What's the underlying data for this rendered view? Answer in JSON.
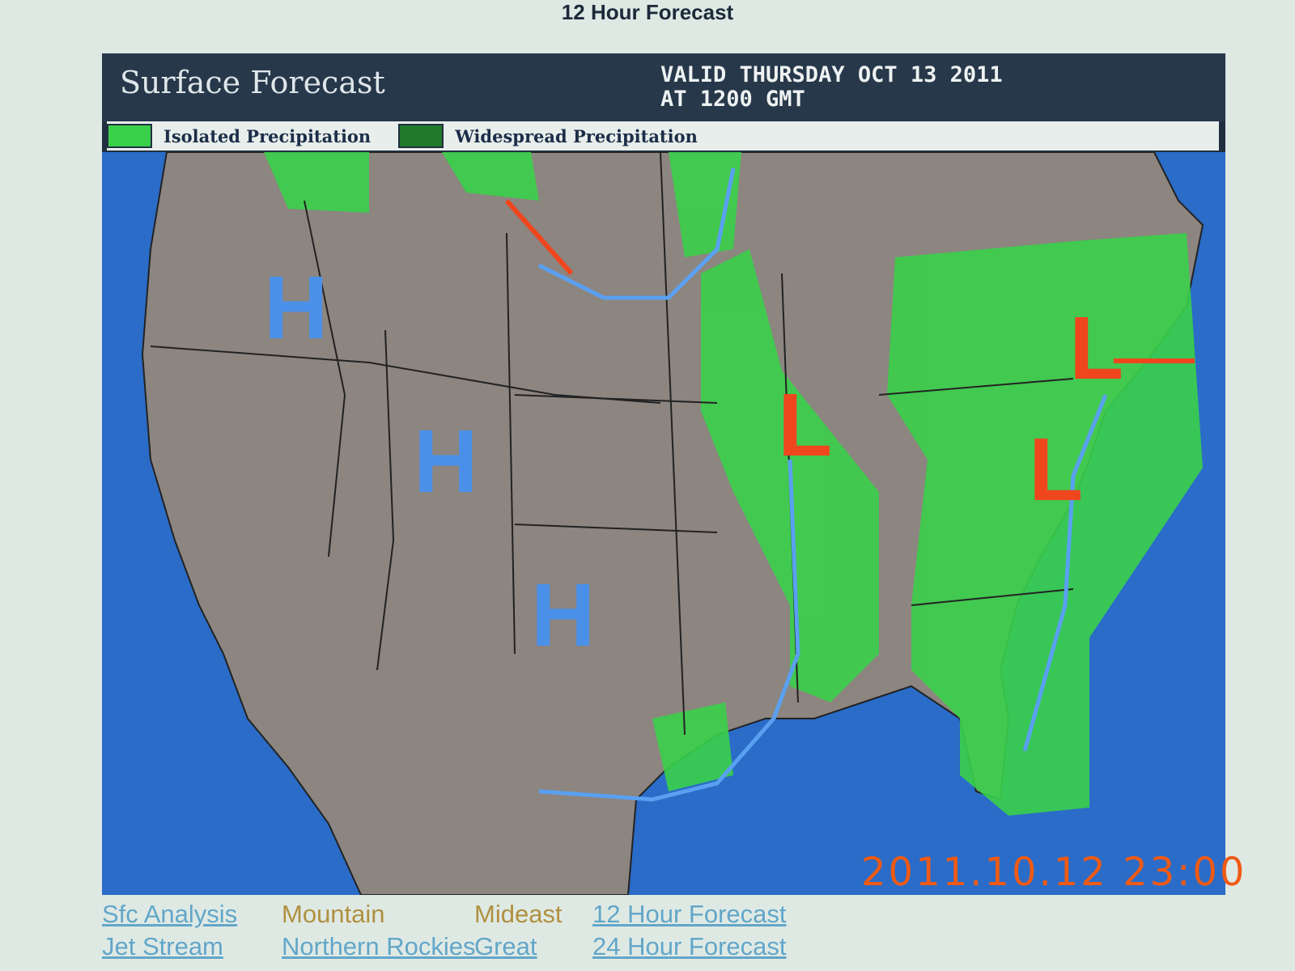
{
  "page_title": "12 Hour Forecast",
  "map": {
    "title": "Surface Forecast",
    "valid_line1": "VALID THURSDAY OCT 13  2011",
    "valid_line2": "AT 1200 GMT",
    "legend": [
      {
        "label": "Isolated Precipitation",
        "color": "#3ad04a"
      },
      {
        "label": "Widespread Precipitation",
        "color": "#1f7a2a"
      }
    ],
    "pressure_centers": [
      {
        "type": "H",
        "location": "Idaho"
      },
      {
        "type": "H",
        "location": "Colorado"
      },
      {
        "type": "H",
        "location": "Texas Panhandle"
      },
      {
        "type": "L",
        "location": "Illinois/Wisconsin"
      },
      {
        "type": "L",
        "location": "New England"
      },
      {
        "type": "L",
        "location": "Virginia"
      }
    ],
    "colors": {
      "ocean": "#2a6cc8",
      "land": "#8c8580",
      "high": "#4a90e8",
      "low": "#f0461e",
      "cold_front": "#5aa0f0",
      "warm_front": "#f0461e"
    }
  },
  "timestamp": "2011.10.12  23:00",
  "links": {
    "row1": [
      "Sfc Analysis",
      "Mountain",
      "Mideast",
      "12 Hour Forecast"
    ],
    "row2": [
      "Jet Stream",
      "Northern Rockies",
      "Great",
      "24 Hour Forecast"
    ]
  }
}
